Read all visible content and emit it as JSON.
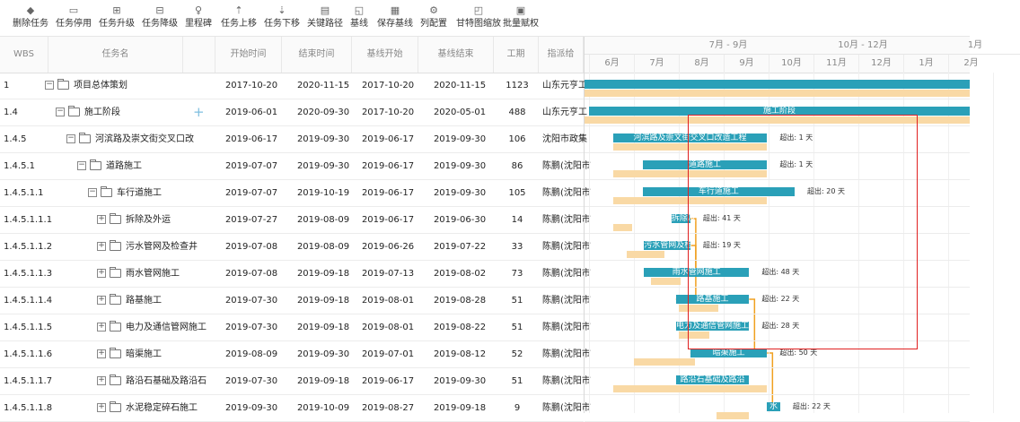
{
  "toolbar": [
    {
      "label": "删除任务",
      "icon": "diamond-icon",
      "glyph": "◆"
    },
    {
      "label": "任务停用",
      "icon": "disable-icon",
      "glyph": "▭"
    },
    {
      "label": "任务升级",
      "icon": "upgrade-icon",
      "glyph": "⊞"
    },
    {
      "label": "任务降级",
      "icon": "downgrade-icon",
      "glyph": "⊟"
    },
    {
      "label": "里程碑",
      "icon": "milestone-icon",
      "glyph": "♀"
    },
    {
      "label": "任务上移",
      "icon": "move-up-icon",
      "glyph": "⇡"
    },
    {
      "label": "任务下移",
      "icon": "move-down-icon",
      "glyph": "⇣"
    },
    {
      "label": "关键路径",
      "icon": "critical-path-icon",
      "glyph": "▤"
    },
    {
      "label": "基线",
      "icon": "baseline-icon",
      "glyph": "◱"
    },
    {
      "label": "保存基线",
      "icon": "save-baseline-icon",
      "glyph": "▦"
    },
    {
      "label": "列配置",
      "icon": "gear-icon",
      "glyph": "⚙"
    },
    {
      "label": "甘特图缩放",
      "icon": "zoom-icon",
      "glyph": "◰"
    },
    {
      "label": "批量赋权",
      "icon": "batch-icon",
      "glyph": "▣"
    }
  ],
  "columns": {
    "wbs": "WBS",
    "name": "任务名",
    "start": "开始时间",
    "end": "结束时间",
    "baseline_start": "基线开始",
    "baseline_end": "基线结束",
    "duration": "工期",
    "org": "指派给"
  },
  "gantt_header": {
    "quarters": [
      "7月 - 9月",
      "10月 - 12月",
      "1月"
    ],
    "months": [
      "6月",
      "7月",
      "8月",
      "9月",
      "10月",
      "11月",
      "12月",
      "1月",
      "2月"
    ]
  },
  "rows": [
    {
      "wbs": "1",
      "name": "项目总体策划",
      "start": "2017-10-20",
      "end": "2020-11-15",
      "baseline_start": "2017-10-20",
      "baseline_end": "2020-11-15",
      "duration": "1123",
      "org": "山东元亨工",
      "bar_label": "",
      "delay": ""
    },
    {
      "wbs": "1.4",
      "name": "施工阶段",
      "start": "2019-06-01",
      "end": "2020-09-30",
      "baseline_start": "2017-10-20",
      "baseline_end": "2020-05-01",
      "duration": "488",
      "org": "山东元亨工",
      "bar_label": "施工阶段",
      "delay": ""
    },
    {
      "wbs": "1.4.5",
      "name": "河滨路及崇文街交叉口改",
      "start": "2019-06-17",
      "end": "2019-09-30",
      "baseline_start": "2019-06-17",
      "baseline_end": "2019-09-30",
      "duration": "106",
      "org": "沈阳市政集",
      "bar_label": "河滨路及崇文街交叉口改造工程",
      "delay": "超出: 1 天"
    },
    {
      "wbs": "1.4.5.1",
      "name": "道路施工",
      "start": "2019-07-07",
      "end": "2019-09-30",
      "baseline_start": "2019-06-17",
      "baseline_end": "2019-09-30",
      "duration": "86",
      "org": "陈鹏(沈阳市",
      "bar_label": "道路施工",
      "delay": "超出: 1 天"
    },
    {
      "wbs": "1.4.5.1.1",
      "name": "车行道施工",
      "start": "2019-07-07",
      "end": "2019-10-19",
      "baseline_start": "2019-06-17",
      "baseline_end": "2019-09-30",
      "duration": "105",
      "org": "陈鹏(沈阳市",
      "bar_label": "车行道施工",
      "delay": "超出: 20 天"
    },
    {
      "wbs": "1.4.5.1.1.1",
      "name": "拆除及外运",
      "start": "2019-07-27",
      "end": "2019-08-09",
      "baseline_start": "2019-06-17",
      "baseline_end": "2019-06-30",
      "duration": "14",
      "org": "陈鹏(沈阳市",
      "bar_label": "拆除及",
      "delay": "超出: 41 天"
    },
    {
      "wbs": "1.4.5.1.1.2",
      "name": "污水管网及检查井",
      "start": "2019-07-08",
      "end": "2019-08-09",
      "baseline_start": "2019-06-26",
      "baseline_end": "2019-07-22",
      "duration": "33",
      "org": "陈鹏(沈阳市",
      "bar_label": "污水管网及检",
      "delay": "超出: 19 天"
    },
    {
      "wbs": "1.4.5.1.1.3",
      "name": "雨水管网施工",
      "start": "2019-07-08",
      "end": "2019-09-18",
      "baseline_start": "2019-07-13",
      "baseline_end": "2019-08-02",
      "duration": "73",
      "org": "陈鹏(沈阳市",
      "bar_label": "雨水管网施工",
      "delay": "超出: 48 天"
    },
    {
      "wbs": "1.4.5.1.1.4",
      "name": "路基施工",
      "start": "2019-07-30",
      "end": "2019-09-18",
      "baseline_start": "2019-08-01",
      "baseline_end": "2019-08-28",
      "duration": "51",
      "org": "陈鹏(沈阳市",
      "bar_label": "路基施工",
      "delay": "超出: 22 天"
    },
    {
      "wbs": "1.4.5.1.1.5",
      "name": "电力及通信管网施工",
      "start": "2019-07-30",
      "end": "2019-09-18",
      "baseline_start": "2019-08-01",
      "baseline_end": "2019-08-22",
      "duration": "51",
      "org": "陈鹏(沈阳市",
      "bar_label": "电力及通信管网施工",
      "delay": "超出: 28 天"
    },
    {
      "wbs": "1.4.5.1.1.6",
      "name": "暗渠施工",
      "start": "2019-08-09",
      "end": "2019-09-30",
      "baseline_start": "2019-07-01",
      "baseline_end": "2019-08-12",
      "duration": "52",
      "org": "陈鹏(沈阳市",
      "bar_label": "暗渠施工",
      "delay": "超出: 50 天"
    },
    {
      "wbs": "1.4.5.1.1.7",
      "name": "路沿石基础及路沿石",
      "start": "2019-07-30",
      "end": "2019-09-18",
      "baseline_start": "2019-06-17",
      "baseline_end": "2019-09-30",
      "duration": "51",
      "org": "陈鹏(沈阳市",
      "bar_label": "路沿石基础及路沿",
      "delay": ""
    },
    {
      "wbs": "1.4.5.1.1.8",
      "name": "水泥稳定碎石施工",
      "start": "2019-09-30",
      "end": "2019-10-09",
      "baseline_start": "2019-08-27",
      "baseline_end": "2019-09-18",
      "duration": "9",
      "org": "陈鹏(沈阳市",
      "bar_label": "水",
      "delay": "超出: 22 天"
    }
  ],
  "colors": {
    "plan_bar": "#2aa0b8",
    "baseline_bar": "#f9d9a5",
    "dependency": "#f0a020",
    "highlight": "#e02020"
  }
}
